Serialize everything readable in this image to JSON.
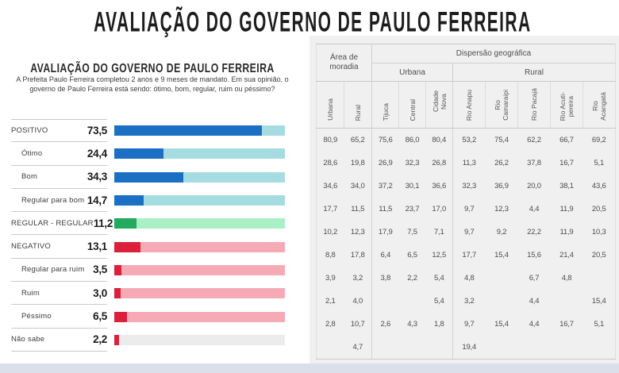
{
  "page": {
    "title": "AVALIAÇÃO DO GOVERNO DE PAULO FERREIRA"
  },
  "chart": {
    "title": "AVALIAÇÃO DO GOVERNO DE PAULO FERREIRA",
    "subtitle_line1": "A Prefeita Paulo Ferreira completou 2 anos e 9 meses de mandato. Em sua opinião, o",
    "subtitle_line2": "governo de Paulo Ferreira está sendo: ótimo, bom, regular, ruim ou péssimo?"
  },
  "chart_data": {
    "type": "bar",
    "orientation": "horizontal",
    "title": "AVALIAÇÃO DO GOVERNO DE PAULO FERREIRA",
    "categories": [
      "POSITIVO",
      "Ótimo",
      "Bom",
      "Regular para bom",
      "REGULAR - REGULAR",
      "NEGATIVO",
      "Regular para ruim",
      "Ruim",
      "Péssimo",
      "Não sabe"
    ],
    "values": [
      73.5,
      24.4,
      34.3,
      14.7,
      11.2,
      13.1,
      3.5,
      3.0,
      6.5,
      2.2
    ],
    "value_labels": [
      "73,5",
      "24,4",
      "34,3",
      "14,7",
      "11,2",
      "13,1",
      "3,5",
      "3,0",
      "6,5",
      "2,2"
    ],
    "groups": [
      "positive",
      "positive-sub",
      "positive-sub",
      "positive-sub",
      "regular",
      "negative",
      "negative-sub",
      "negative-sub",
      "negative-sub",
      "nosabe"
    ],
    "xlim": [
      0,
      85
    ],
    "grid": false,
    "legend": false,
    "colors": {
      "positive_fill": "#1b70c4",
      "positive_track": "#a5dce1",
      "regular_fill": "#22aa5e",
      "regular_track": "#aaf0c5",
      "negative_fill": "#dc203c",
      "negative_track": "#f6aab6",
      "nosabe_fill": "#dc203c",
      "nosabe_track": "#ececec"
    }
  },
  "table": {
    "group_headers": {
      "area": "Área de moradia",
      "dispersao": "Dispersão geográfica",
      "urbana": "Urbana",
      "rural": "Rural"
    },
    "columns": [
      "Urbana",
      "Rural",
      "Tijuca",
      "Central",
      "Cidade Nova",
      "Rio Anapu",
      "Rio\nCamaraipi",
      "Rio Pacajá",
      "Rio Acuti-\npereira",
      "Rio\nAcangatá"
    ],
    "rows": [
      [
        "80,9",
        "65,2",
        "75,6",
        "86,0",
        "80,4",
        "53,2",
        "75,4",
        "62,2",
        "66,7",
        "69,2"
      ],
      [
        "28,6",
        "19,8",
        "26,9",
        "32,3",
        "26,8",
        "11,3",
        "26,2",
        "37,8",
        "16,7",
        "5,1"
      ],
      [
        "34,6",
        "34,0",
        "37,2",
        "30,1",
        "36,6",
        "32,3",
        "36,9",
        "20,0",
        "38,1",
        "43,6"
      ],
      [
        "17,7",
        "11,5",
        "11,5",
        "23,7",
        "17,0",
        "9,7",
        "12,3",
        "4,4",
        "11,9",
        "20,5"
      ],
      [
        "10,2",
        "12,3",
        "17,9",
        "7,5",
        "7,1",
        "9,7",
        "9,2",
        "22,2",
        "11,9",
        "10,3"
      ],
      [
        "8,8",
        "17,8",
        "6,4",
        "6,5",
        "12,5",
        "17,7",
        "15,4",
        "15,6",
        "21,4",
        "20,5"
      ],
      [
        "3,9",
        "3,2",
        "3,8",
        "2,2",
        "5,4",
        "4,8",
        "",
        "6,7",
        "4,8",
        ""
      ],
      [
        "2,1",
        "4,0",
        "",
        "",
        "5,4",
        "3,2",
        "",
        "4,4",
        "",
        "15,4"
      ],
      [
        "2,8",
        "10,7",
        "2,6",
        "4,3",
        "1,8",
        "9,7",
        "15,4",
        "4,4",
        "16,7",
        "5,1"
      ],
      [
        "",
        "4,7",
        "",
        "",
        "",
        "19,4",
        "",
        "",
        "",
        ""
      ]
    ]
  }
}
